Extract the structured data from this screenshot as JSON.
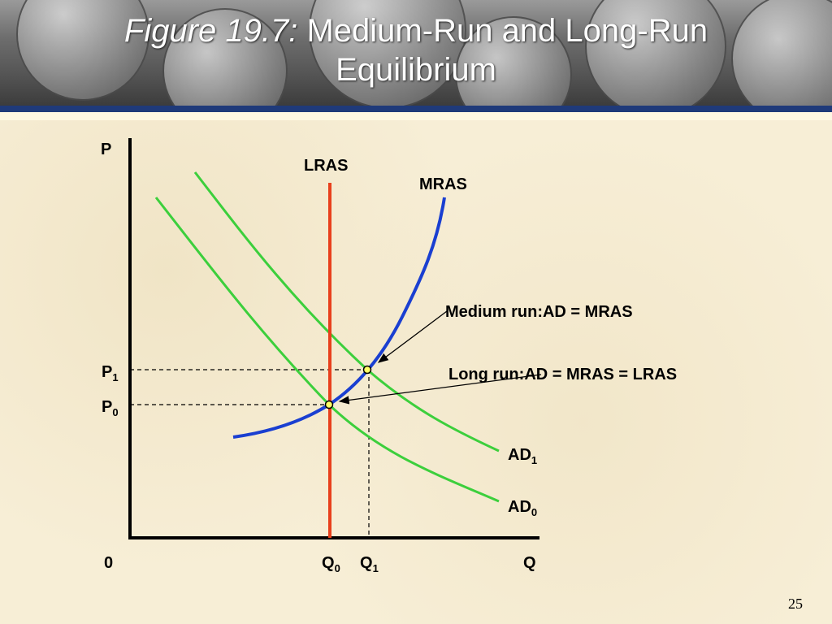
{
  "title": {
    "figure": "Figure 19.7:",
    "text_line1": "Medium-Run and Long-Run",
    "text_line2": "Equilibrium"
  },
  "axes": {
    "y_label": "P",
    "x_label": "Q",
    "origin": "0"
  },
  "curves": {
    "lras": "LRAS",
    "mras": "MRAS",
    "ad1": {
      "base": "AD",
      "sub": "1"
    },
    "ad0": {
      "base": "AD",
      "sub": "0"
    }
  },
  "price_levels": {
    "p1": {
      "base": "P",
      "sub": "1"
    },
    "p0": {
      "base": "P",
      "sub": "0"
    }
  },
  "quantities": {
    "q0": {
      "base": "Q",
      "sub": "0"
    },
    "q1": {
      "base": "Q",
      "sub": "1"
    }
  },
  "annotations": {
    "medium_run": "Medium run:AD = MRAS",
    "long_run_prefix": "Long run:",
    "long_run_eq": "AD = MRAS = LRAS"
  },
  "colors": {
    "lras": "#e8401c",
    "mras": "#1a3fd1",
    "ad": "#3ccf3c",
    "axis": "#000000"
  },
  "page_number": "25"
}
